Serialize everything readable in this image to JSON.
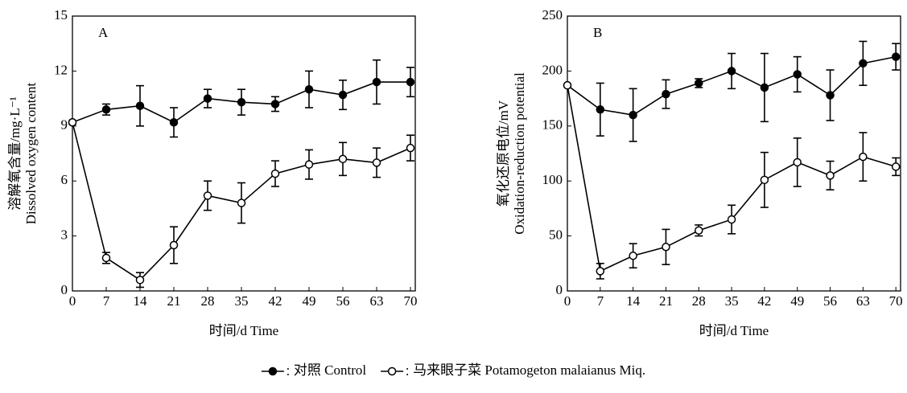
{
  "chart_data": [
    {
      "type": "line",
      "panel_label": "A",
      "ylabel": [
        "溶解氧含量/mg·L⁻¹",
        "Dissolved oxygen content"
      ],
      "xlabel": "时间/d    Time",
      "x": [
        0,
        7,
        14,
        21,
        28,
        35,
        42,
        49,
        56,
        63,
        70
      ],
      "xlim": [
        0,
        71
      ],
      "xticks": [
        0,
        7,
        14,
        21,
        28,
        35,
        42,
        49,
        56,
        63,
        70
      ],
      "ylim": [
        0,
        15
      ],
      "yticks": [
        0,
        3,
        6,
        9,
        12,
        15
      ],
      "series": [
        {
          "name": "对照 Control",
          "color": "#000000",
          "marker_fill": "#000000",
          "values": [
            9.2,
            9.9,
            10.1,
            9.2,
            10.5,
            10.3,
            10.2,
            11.0,
            10.7,
            11.4,
            11.4
          ],
          "errors": [
            0,
            0.3,
            1.1,
            0.8,
            0.5,
            0.7,
            0.4,
            1.0,
            0.8,
            1.2,
            0.8
          ]
        },
        {
          "name": "马来眼子菜 Potamogeton malaianus Miq.",
          "color": "#000000",
          "marker_fill": "#ffffff",
          "values": [
            9.2,
            1.8,
            0.6,
            2.5,
            5.2,
            4.8,
            6.4,
            6.9,
            7.2,
            7.0,
            7.8
          ],
          "errors": [
            0,
            0.3,
            0.4,
            1.0,
            0.8,
            1.1,
            0.7,
            0.8,
            0.9,
            0.8,
            0.7
          ]
        }
      ]
    },
    {
      "type": "line",
      "panel_label": "B",
      "ylabel": [
        "氧化还原电位/mV",
        "Oxidation-reduction potential"
      ],
      "xlabel": "时间/d    Time",
      "x": [
        0,
        7,
        14,
        21,
        28,
        35,
        42,
        49,
        56,
        63,
        70
      ],
      "xlim": [
        0,
        71
      ],
      "xticks": [
        0,
        7,
        14,
        21,
        28,
        35,
        42,
        49,
        56,
        63,
        70
      ],
      "ylim": [
        0,
        250
      ],
      "yticks": [
        0,
        50,
        100,
        150,
        200,
        250
      ],
      "series": [
        {
          "color": "#000000",
          "marker_fill": "#000000",
          "values": [
            187,
            165,
            160,
            179,
            189,
            200,
            185,
            197,
            178,
            207,
            213
          ],
          "errors": [
            0,
            24,
            24,
            13,
            4,
            16,
            31,
            16,
            23,
            20,
            12
          ]
        },
        {
          "color": "#000000",
          "marker_fill": "#ffffff",
          "values": [
            187,
            18,
            32,
            40,
            55,
            65,
            101,
            117,
            105,
            122,
            113
          ],
          "errors": [
            0,
            7,
            11,
            16,
            5,
            13,
            25,
            22,
            13,
            22,
            8
          ]
        }
      ]
    }
  ]
}
